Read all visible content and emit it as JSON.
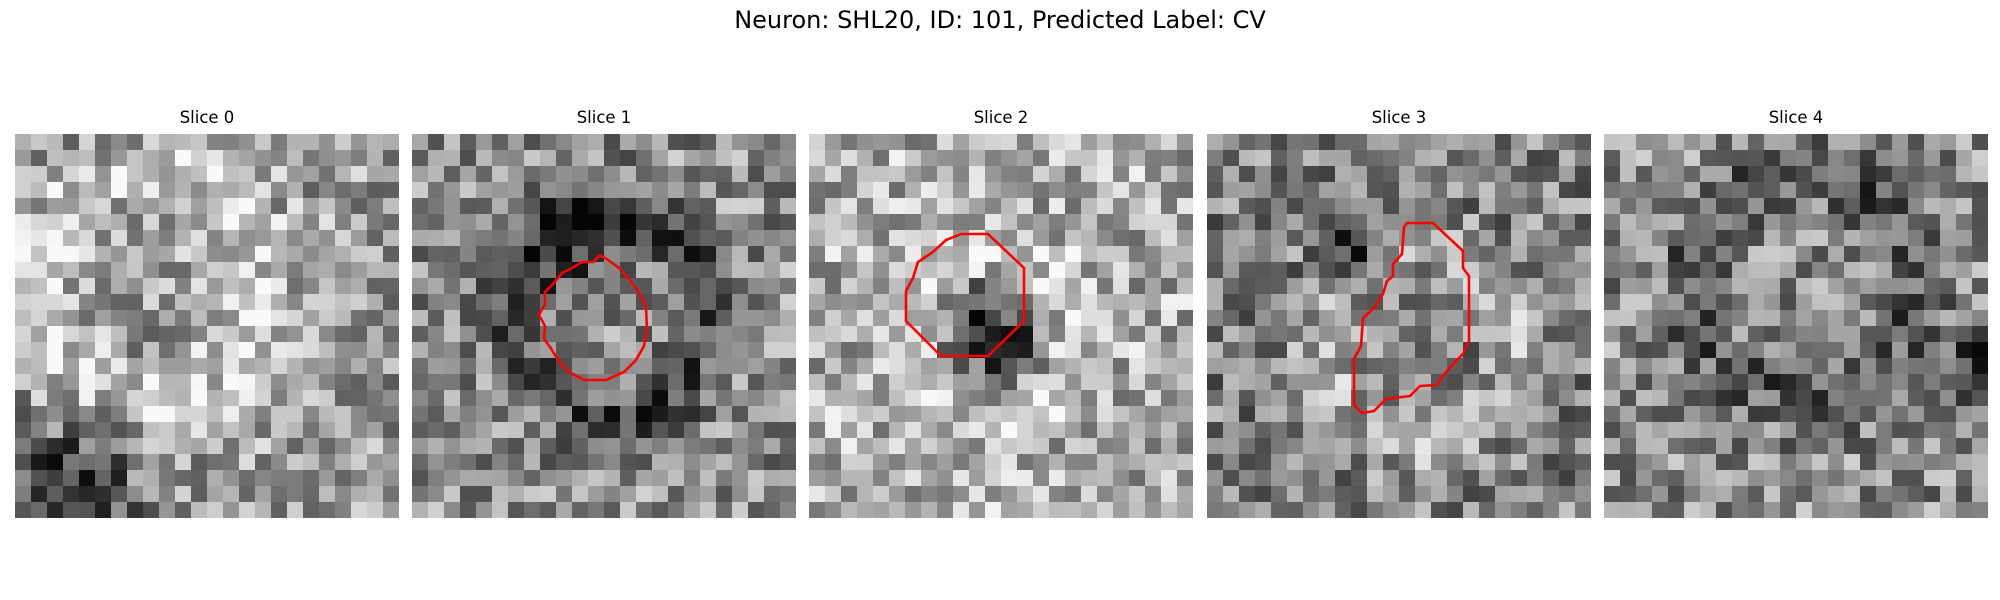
{
  "figure": {
    "title": "Neuron: SHL20, ID: 101, Predicted Label: CV"
  },
  "panels": [
    {
      "title": "Slice 0",
      "has_contour": false
    },
    {
      "title": "Slice 1",
      "has_contour": true
    },
    {
      "title": "Slice 2",
      "has_contour": true
    },
    {
      "title": "Slice 3",
      "has_contour": true
    },
    {
      "title": "Slice 4",
      "has_contour": false
    }
  ],
  "colors": {
    "contour": "#ff0000",
    "colormap": "grayscale"
  }
}
